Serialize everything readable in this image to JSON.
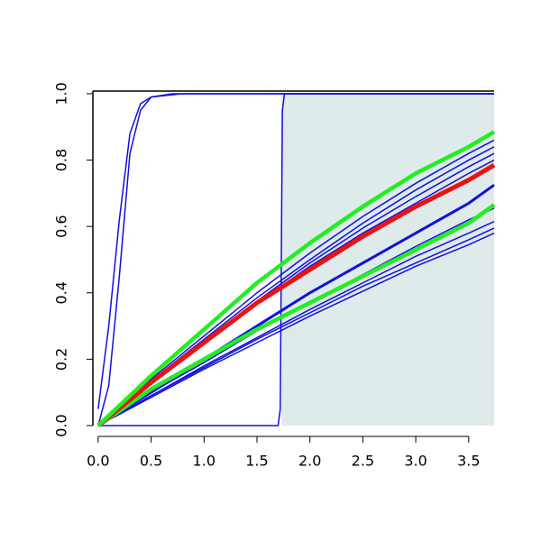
{
  "chart_data": {
    "type": "line",
    "xlim": [
      -0.05,
      3.74
    ],
    "ylim": [
      0,
      1.008
    ],
    "xticks": [
      {
        "value": 0,
        "label": "0.0"
      },
      {
        "value": 0.5,
        "label": "0.5"
      },
      {
        "value": 1,
        "label": "1.0"
      },
      {
        "value": 1.5,
        "label": "1.5"
      },
      {
        "value": 2,
        "label": "2.0"
      },
      {
        "value": 2.5,
        "label": "2.5"
      },
      {
        "value": 3,
        "label": "3.0"
      },
      {
        "value": 3.5,
        "label": "3.5"
      }
    ],
    "yticks": [
      {
        "value": 0,
        "label": "0.0"
      },
      {
        "value": 0.2,
        "label": "0.2"
      },
      {
        "value": 0.4,
        "label": "0.4"
      },
      {
        "value": 0.6,
        "label": "0.6"
      },
      {
        "value": 0.8,
        "label": "0.8"
      },
      {
        "value": 1,
        "label": "1.0"
      }
    ],
    "shade": {
      "xlim": [
        1.73,
        3.74
      ],
      "ylim": [
        0,
        1
      ],
      "color": "#dfeaea"
    },
    "series": [
      {
        "color": "#1010e0",
        "lwd": 1.5,
        "x": [
          0,
          1.7,
          1.72,
          1.74,
          1.76,
          3.74
        ],
        "values": [
          0,
          0,
          0.05,
          0.95,
          1,
          1
        ]
      },
      {
        "color": "#1010e0",
        "lwd": 1.5,
        "x": [
          0,
          0.1,
          0.2,
          0.3,
          0.4,
          0.5,
          0.7,
          3.74
        ],
        "values": [
          0.05,
          0.3,
          0.62,
          0.88,
          0.97,
          0.99,
          1,
          1
        ]
      },
      {
        "color": "#1010e0",
        "lwd": 1.5,
        "x": [
          0,
          0.1,
          0.2,
          0.3,
          0.4,
          0.5,
          0.8,
          3.74
        ],
        "values": [
          0,
          0.12,
          0.45,
          0.82,
          0.95,
          0.99,
          1,
          1
        ]
      },
      {
        "color": "#1010e0",
        "lwd": 1.5,
        "x": [
          0,
          0.5,
          1,
          1.5,
          2,
          2.5,
          3,
          3.5,
          3.74
        ],
        "values": [
          0,
          0.14,
          0.27,
          0.4,
          0.52,
          0.63,
          0.73,
          0.82,
          0.86
        ]
      },
      {
        "color": "#1010e0",
        "lwd": 1.5,
        "x": [
          0,
          0.5,
          1,
          1.5,
          2,
          2.5,
          3,
          3.5,
          3.74
        ],
        "values": [
          0,
          0.135,
          0.26,
          0.385,
          0.5,
          0.61,
          0.71,
          0.8,
          0.84
        ]
      },
      {
        "color": "#1010e0",
        "lwd": 1.5,
        "x": [
          0,
          0.5,
          1,
          1.5,
          2,
          2.5,
          3,
          3.5,
          3.74
        ],
        "values": [
          0,
          0.13,
          0.255,
          0.375,
          0.49,
          0.595,
          0.69,
          0.78,
          0.82
        ]
      },
      {
        "color": "#1010e0",
        "lwd": 1.5,
        "x": [
          0,
          0.5,
          1,
          1.5,
          2,
          2.5,
          3,
          3.5,
          3.74
        ],
        "values": [
          0,
          0.13,
          0.25,
          0.37,
          0.48,
          0.58,
          0.67,
          0.76,
          0.8
        ]
      },
      {
        "color": "#1010e0",
        "lwd": 3,
        "x": [
          0,
          0.5,
          1,
          1.5,
          2,
          2.5,
          3,
          3.5,
          3.74
        ],
        "values": [
          0,
          0.1,
          0.2,
          0.3,
          0.4,
          0.49,
          0.58,
          0.67,
          0.725
        ]
      },
      {
        "color": "#1010e0",
        "lwd": 1.5,
        "x": [
          0,
          0.5,
          1,
          1.5,
          2,
          2.5,
          3,
          3.5,
          3.74
        ],
        "values": [
          0,
          0.1,
          0.19,
          0.285,
          0.37,
          0.455,
          0.54,
          0.62,
          0.655
        ]
      },
      {
        "color": "#1010e0",
        "lwd": 1.5,
        "x": [
          0,
          0.5,
          1,
          1.5,
          2,
          2.5,
          3,
          3.5,
          3.74
        ],
        "values": [
          0,
          0.09,
          0.18,
          0.265,
          0.35,
          0.43,
          0.51,
          0.58,
          0.615
        ]
      },
      {
        "color": "#1010e0",
        "lwd": 1.5,
        "x": [
          0,
          0.5,
          1,
          1.5,
          2,
          2.5,
          3,
          3.5,
          3.74
        ],
        "values": [
          0,
          0.09,
          0.175,
          0.26,
          0.34,
          0.42,
          0.49,
          0.56,
          0.595
        ]
      },
      {
        "color": "#1010e0",
        "lwd": 1.5,
        "x": [
          0,
          0.5,
          1,
          1.5,
          2,
          2.5,
          3,
          3.5,
          3.74
        ],
        "values": [
          0,
          0.085,
          0.17,
          0.25,
          0.33,
          0.405,
          0.48,
          0.545,
          0.58
        ]
      },
      {
        "color": "#22ee22",
        "lwd": 4.5,
        "x": [
          0,
          0.5,
          1,
          1.5,
          2,
          2.5,
          3,
          3.5,
          3.74
        ],
        "values": [
          0,
          0.11,
          0.2,
          0.29,
          0.37,
          0.45,
          0.53,
          0.61,
          0.665
        ]
      },
      {
        "color": "#ee1111",
        "lwd": 5,
        "x": [
          0,
          0.5,
          1,
          1.5,
          2,
          2.5,
          3,
          3.5,
          3.74
        ],
        "values": [
          0,
          0.13,
          0.25,
          0.37,
          0.47,
          0.57,
          0.66,
          0.74,
          0.785
        ]
      },
      {
        "color": "#22ee22",
        "lwd": 4.5,
        "x": [
          0,
          0.5,
          1,
          1.5,
          2,
          2.5,
          3,
          3.5,
          3.74
        ],
        "values": [
          0,
          0.15,
          0.29,
          0.43,
          0.55,
          0.66,
          0.76,
          0.84,
          0.885
        ]
      }
    ]
  }
}
